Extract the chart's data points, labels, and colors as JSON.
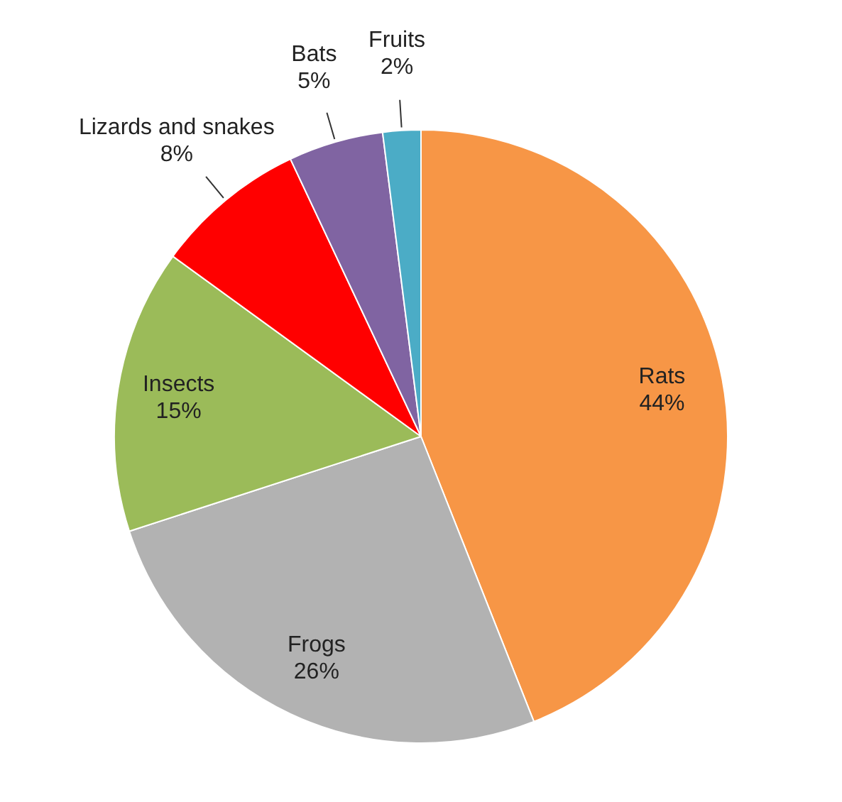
{
  "chart_data": {
    "type": "pie",
    "categories": [
      "Rats",
      "Frogs",
      "Insects",
      "Lizards and snakes",
      "Bats",
      "Fruits"
    ],
    "values": [
      44,
      26,
      15,
      8,
      5,
      2
    ],
    "colors": [
      "#f79646",
      "#b2b2b2",
      "#9bbb59",
      "#ff0000",
      "#8064a2",
      "#4bacc6"
    ],
    "value_labels": [
      "44%",
      "26%",
      "15%",
      "8%",
      "5%",
      "2%"
    ],
    "legend": false
  }
}
